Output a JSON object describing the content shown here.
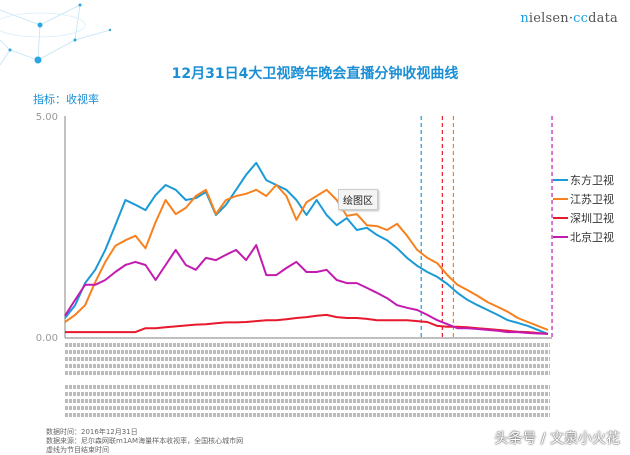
{
  "logo": {
    "text_a": "n",
    "text_b": "ielsen·",
    "text_c": "cc",
    "text_d": "data"
  },
  "colors": {
    "title": "#1a8fd6",
    "axis": "#999999"
  },
  "chart_data": {
    "type": "line",
    "title": "12月31日4大卫视跨年晚会直播分钟收视曲线",
    "ylabel": "指标：收视率",
    "xlabel": "",
    "ylim": [
      0,
      5
    ],
    "yticks": [
      "0.00",
      "5.00"
    ],
    "legend_position": "right",
    "grid": false,
    "series": [
      {
        "name": "东方卫视",
        "color": "#1a9ad6",
        "values": [
          0.43,
          0.72,
          1.22,
          1.52,
          1.97,
          2.53,
          3.1,
          2.99,
          2.87,
          3.21,
          3.44,
          3.33,
          3.1,
          3.14,
          3.28,
          2.76,
          2.99,
          3.33,
          3.67,
          3.94,
          3.55,
          3.44,
          3.33,
          3.1,
          2.76,
          3.1,
          2.76,
          2.53,
          2.69,
          2.42,
          2.47,
          2.31,
          2.19,
          2.01,
          1.79,
          1.61,
          1.47,
          1.36,
          1.2,
          1.0,
          0.84,
          0.72,
          0.61,
          0.5,
          0.38,
          0.32,
          0.25,
          0.16,
          0.07
        ],
        "end_marker": 35.4
      },
      {
        "name": "江苏卫视",
        "color": "#f7811e",
        "values": [
          0.34,
          0.5,
          0.72,
          1.24,
          1.7,
          2.06,
          2.19,
          2.29,
          2.01,
          2.6,
          3.1,
          2.78,
          2.92,
          3.19,
          3.33,
          2.78,
          3.1,
          3.19,
          3.24,
          3.33,
          3.19,
          3.44,
          3.19,
          2.65,
          3.05,
          3.19,
          3.33,
          3.1,
          2.74,
          2.78,
          2.53,
          2.51,
          2.42,
          2.56,
          2.29,
          1.97,
          1.79,
          1.67,
          1.4,
          1.18,
          1.06,
          0.93,
          0.79,
          0.68,
          0.57,
          0.43,
          0.34,
          0.25,
          0.16
        ],
        "end_marker": 38.6
      },
      {
        "name": "深圳卫视",
        "color": "#e8192c",
        "values": [
          0.11,
          0.11,
          0.11,
          0.11,
          0.11,
          0.11,
          0.11,
          0.11,
          0.2,
          0.2,
          0.22,
          0.24,
          0.26,
          0.28,
          0.29,
          0.31,
          0.33,
          0.33,
          0.34,
          0.36,
          0.38,
          0.38,
          0.4,
          0.43,
          0.45,
          0.48,
          0.5,
          0.45,
          0.43,
          0.43,
          0.41,
          0.38,
          0.38,
          0.38,
          0.38,
          0.36,
          0.34,
          0.25,
          0.23,
          0.23,
          0.22,
          0.2,
          0.18,
          0.16,
          0.14,
          0.12,
          0.11,
          0.09,
          0.07
        ],
        "end_marker": 37.5
      },
      {
        "name": "北京卫视",
        "color": "#c31bb0",
        "values": [
          0.48,
          0.84,
          1.18,
          1.18,
          1.29,
          1.47,
          1.63,
          1.7,
          1.63,
          1.29,
          1.63,
          1.97,
          1.63,
          1.52,
          1.79,
          1.74,
          1.86,
          1.97,
          1.74,
          2.08,
          1.4,
          1.4,
          1.56,
          1.7,
          1.47,
          1.47,
          1.52,
          1.29,
          1.22,
          1.22,
          1.11,
          1.0,
          0.88,
          0.72,
          0.66,
          0.61,
          0.5,
          0.38,
          0.29,
          0.2,
          0.2,
          0.18,
          0.16,
          0.14,
          0.11,
          0.11,
          0.09,
          0.08,
          0.07
        ],
        "end_marker": 48.4
      }
    ]
  },
  "tooltip": "绘图区",
  "footer": {
    "line1": "数据时间：2016年12月31日",
    "line2": "数据来源：尼尔森网联m1AM海量样本收视率，全国核心城市网",
    "line3": "虚线为节目结束时间"
  },
  "watermark": "头条号 / 文泉小火花"
}
